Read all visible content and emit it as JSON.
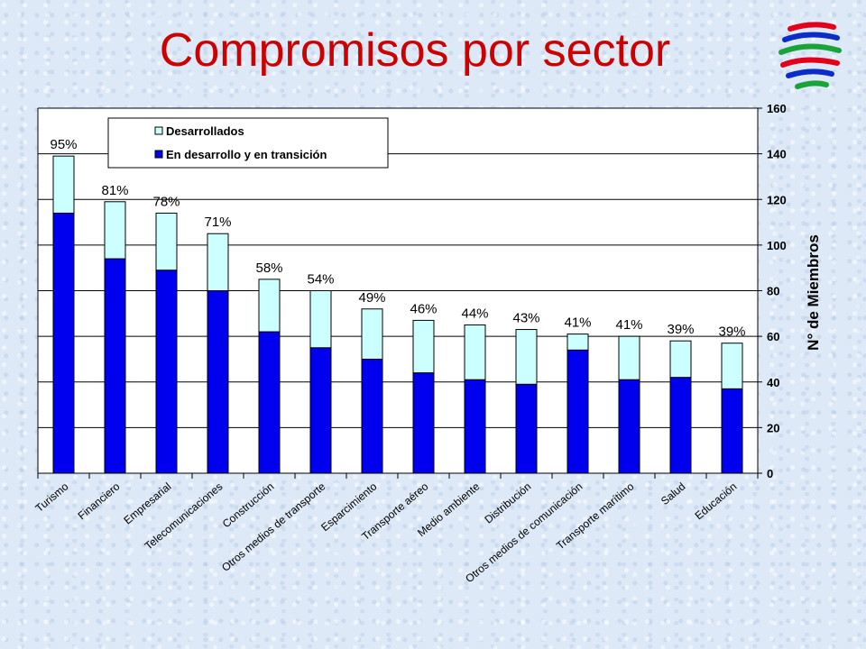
{
  "slide": {
    "title": "Compromisos por sector"
  },
  "logo": {
    "icon": "wto-logo-icon",
    "colors": [
      "#e3001b",
      "#0a2dc9",
      "#1aa33b"
    ]
  },
  "chart_data": {
    "type": "bar",
    "stacked": true,
    "categories": [
      "Turismo",
      "Financiero",
      "Empresarial",
      "Telecomunicaciones",
      "Construcción",
      "Otros medios de transporte",
      "Esparcimiento",
      "Transporte aéreo",
      "Medio ambiente",
      "Distribución",
      "Otros medios de comunicación",
      "Transporte marítimo",
      "Salud",
      "Educación"
    ],
    "series": [
      {
        "name": "En desarrollo y en transición",
        "color": "#0000ee",
        "values": [
          114,
          94,
          89,
          80,
          62,
          55,
          50,
          44,
          41,
          39,
          54,
          41,
          42,
          37
        ]
      },
      {
        "name": "Desarrollados",
        "color": "#ccffff",
        "values": [
          25,
          25,
          25,
          25,
          23,
          25,
          22,
          23,
          24,
          24,
          7,
          19,
          16,
          20
        ]
      }
    ],
    "percent_labels": [
      "95%",
      "81%",
      "78%",
      "71%",
      "58%",
      "54%",
      "49%",
      "46%",
      "44%",
      "43%",
      "41%",
      "41%",
      "39%",
      "39%"
    ],
    "ylabel": "N° de Miembros",
    "yaxis_side": "right",
    "ylim": [
      0,
      160
    ],
    "yticks": [
      "0",
      "20",
      "40",
      "60",
      "80",
      "100",
      "120",
      "140",
      "160"
    ],
    "grid": true,
    "legend_position": "top-left",
    "legend_order": [
      "Desarrollados",
      "En desarrollo y en transición"
    ]
  }
}
